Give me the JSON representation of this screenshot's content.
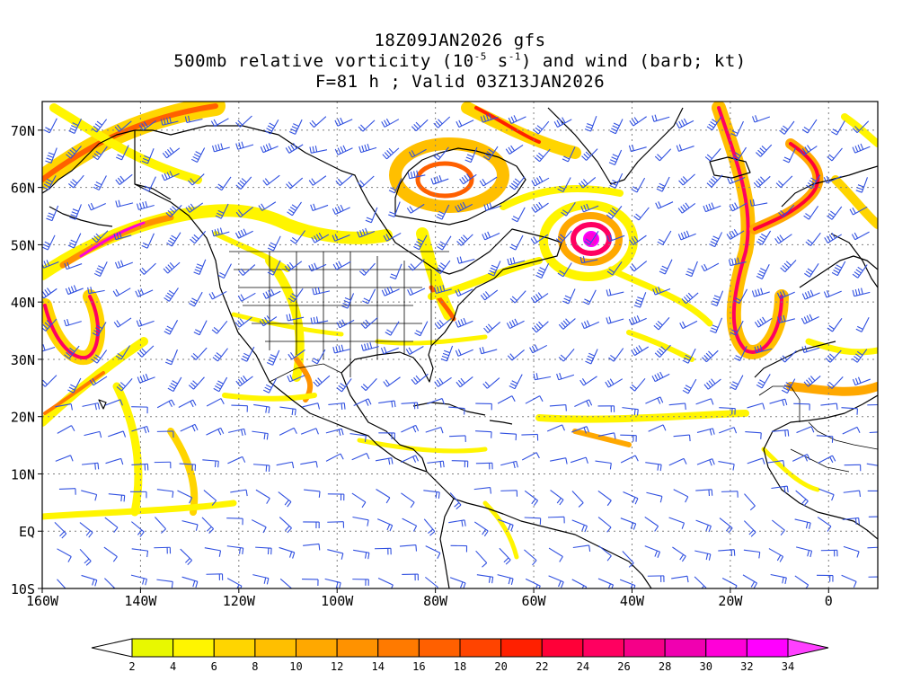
{
  "titles": {
    "line1": "18Z09JAN2026 gfs",
    "line2_prefix": "500mb relative vorticity (10",
    "line2_exp1": "-5",
    "line2_mid": " s",
    "line2_exp2": "-1",
    "line2_suffix": ") and wind (barb; kt)",
    "line3": "F=81 h ; Valid 03Z13JAN2026"
  },
  "axes": {
    "lat_labels": [
      "70N",
      "60N",
      "50N",
      "40N",
      "30N",
      "20N",
      "10N",
      "EQ",
      "10S"
    ],
    "lat_values": [
      70,
      60,
      50,
      40,
      30,
      20,
      10,
      0,
      -10
    ],
    "lon_labels": [
      "160W",
      "140W",
      "120W",
      "100W",
      "80W",
      "60W",
      "40W",
      "20W",
      "0"
    ],
    "lon_values": [
      -160,
      -140,
      -120,
      -100,
      -80,
      -60,
      -40,
      -20,
      0
    ],
    "lon_range": [
      -160,
      10
    ],
    "lat_range": [
      -10,
      75
    ]
  },
  "colorbar": {
    "labels": [
      "2",
      "4",
      "6",
      "8",
      "10",
      "12",
      "14",
      "16",
      "18",
      "20",
      "22",
      "24",
      "26",
      "28",
      "30",
      "32",
      "34"
    ],
    "colors": [
      "#ffffff",
      "#e8f800",
      "#fff500",
      "#ffd500",
      "#ffbf00",
      "#ffa800",
      "#ff9200",
      "#ff7a00",
      "#ff6000",
      "#ff4400",
      "#ff2000",
      "#ff0038",
      "#ff0060",
      "#f50088",
      "#f000b0",
      "#ff00d8",
      "#ff00ff",
      "#ff40ff"
    ]
  },
  "colors": {
    "barb": "#3050e0",
    "coast": "#000000",
    "grid": "#808080"
  }
}
